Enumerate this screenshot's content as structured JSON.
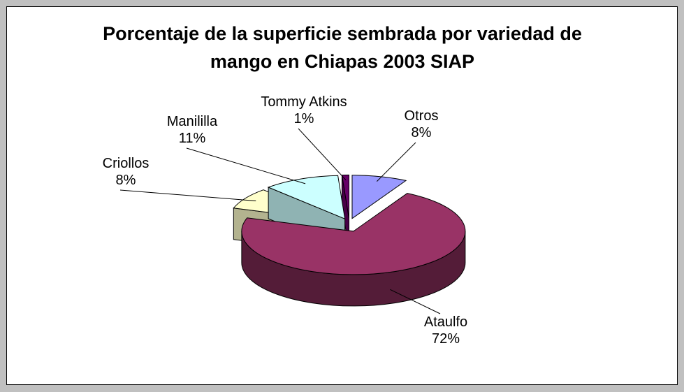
{
  "chart_data": {
    "type": "pie",
    "title": "Porcentaje de la superficie sembrada por variedad de mango en Chiapas 2003 SIAP",
    "categories": [
      "Otros",
      "Ataulfo",
      "Criollos",
      "Manililla",
      "Tommy Atkins"
    ],
    "values": [
      8,
      72,
      8,
      11,
      1
    ],
    "value_labels": [
      "8%",
      "72%",
      "8%",
      "11%",
      "1%"
    ],
    "colors": [
      "#9999ff",
      "#993366",
      "#ffffcc",
      "#ccffff",
      "#660066"
    ]
  }
}
